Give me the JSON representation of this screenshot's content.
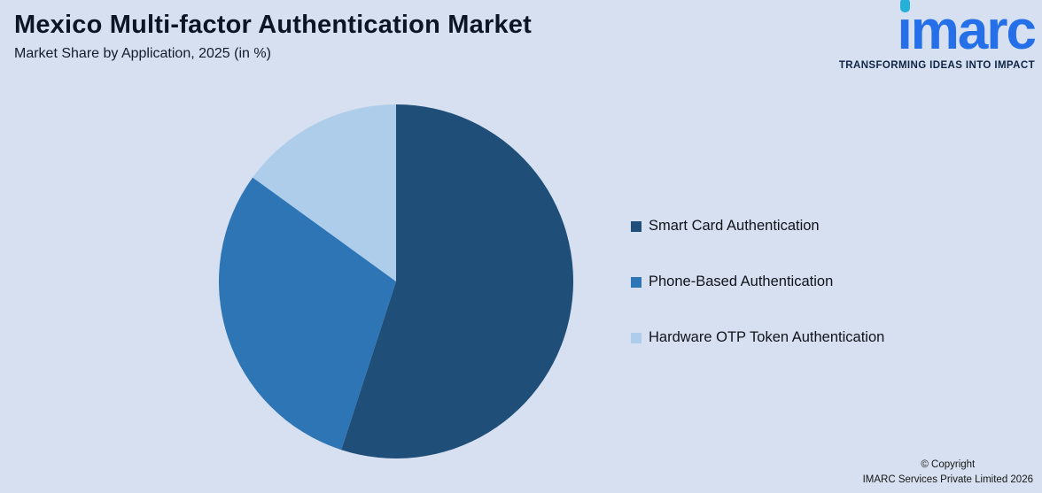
{
  "page": {
    "title": "Mexico Multi-factor Authentication Market",
    "subtitle": "Market Share by Application, 2025 (in %)"
  },
  "logo": {
    "word": "ımarc",
    "tagline": "TRANSFORMING IDEAS INTO IMPACT"
  },
  "copyright": {
    "line1": "© Copyright",
    "line2": "IMARC Services Private Limited 2026"
  },
  "colors": {
    "background": "#d7e0f0",
    "brand_blue": "#2570e8",
    "brand_teal": "#25b0d8"
  },
  "chart_data": {
    "type": "pie",
    "title": "Mexico Multi-factor Authentication Market",
    "subtitle": "Market Share by Application, 2025 (in %)",
    "unit": "%",
    "start_angle_deg": 0,
    "direction": "clockwise",
    "legend_position": "right",
    "slices": [
      {
        "label": "Smart Card Authentication",
        "value": 55,
        "color": "#1f4e79"
      },
      {
        "label": "Phone-Based Authentication",
        "value": 30,
        "color": "#2e75b6"
      },
      {
        "label": "Hardware OTP Token Authentication",
        "value": 15,
        "color": "#aecdeb"
      }
    ]
  }
}
